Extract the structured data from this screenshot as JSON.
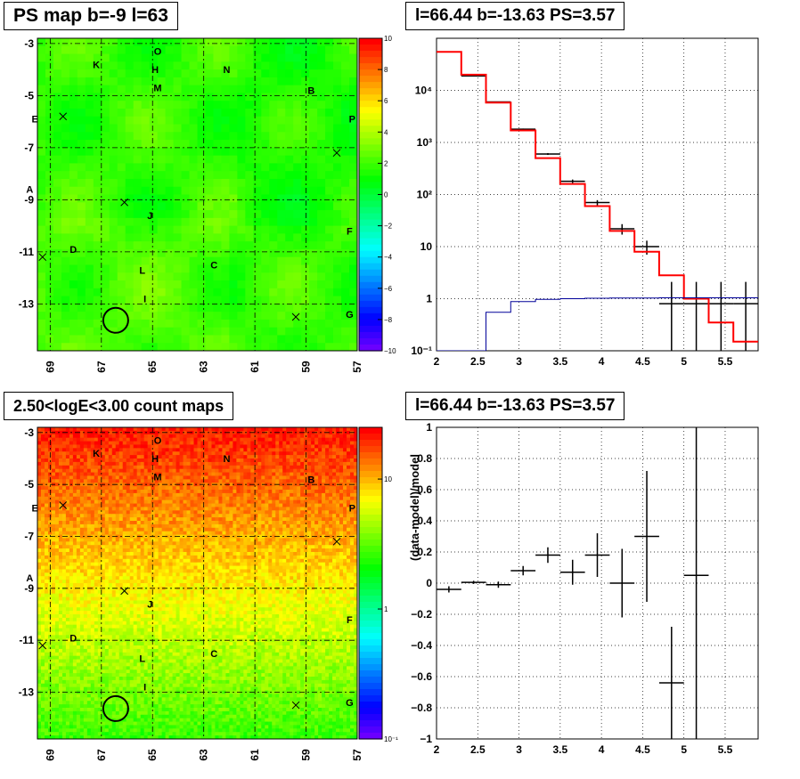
{
  "panels": {
    "ps_map": {
      "title": "PS map b=-9 l=63",
      "x_ticks": [
        "69",
        "67",
        "65",
        "63",
        "61",
        "59",
        "57"
      ],
      "y_ticks": [
        "-3",
        "-5",
        "-7",
        "-9",
        "-11",
        "-13"
      ],
      "colorbar_ticks": [
        "10",
        "8",
        "6",
        "4",
        "2",
        "0",
        "−2",
        "−4",
        "−6",
        "−8",
        "−10"
      ]
    },
    "spectrum": {
      "title": "l=66.44 b=-13.63 PS=3.57",
      "x_ticks": [
        "2",
        "2.5",
        "3",
        "3.5",
        "4",
        "4.5",
        "5",
        "5.5"
      ],
      "y_ticks": [
        "10⁻¹",
        "1",
        "10",
        "10²",
        "10³",
        "10⁴"
      ]
    },
    "count_map": {
      "title": "2.50<logE<3.00 count maps",
      "x_ticks": [
        "69",
        "67",
        "65",
        "63",
        "61",
        "59",
        "57"
      ],
      "y_ticks": [
        "-3",
        "-5",
        "-7",
        "-9",
        "-11",
        "-13"
      ],
      "colorbar_ticks": [
        "10",
        "1",
        "10⁻¹"
      ]
    },
    "residual": {
      "title": "l=66.44 b=-13.63 PS=3.57",
      "ylabel": "(data-model)/model",
      "x_ticks": [
        "2",
        "2.5",
        "3",
        "3.5",
        "4",
        "4.5",
        "5",
        "5.5"
      ],
      "y_ticks": [
        "1",
        "0.8",
        "0.6",
        "0.4",
        "0.2",
        "0",
        "−0.2",
        "−0.4",
        "−0.6",
        "−0.8",
        "−1"
      ]
    }
  },
  "source_labels": [
    {
      "name": "O",
      "l": 64.8,
      "b": -3.3
    },
    {
      "name": "K",
      "l": 67.2,
      "b": -3.8
    },
    {
      "name": "H",
      "l": 64.9,
      "b": -4.0
    },
    {
      "name": "N",
      "l": 62.1,
      "b": -4.0
    },
    {
      "name": "M",
      "l": 64.8,
      "b": -4.7
    },
    {
      "name": "B",
      "l": 58.8,
      "b": -4.8
    },
    {
      "name": "E",
      "l": 69.6,
      "b": -5.9
    },
    {
      "name": "P",
      "l": 57.2,
      "b": -5.9
    },
    {
      "name": "A",
      "l": 69.8,
      "b": -8.6
    },
    {
      "name": "J",
      "l": 65.1,
      "b": -9.6
    },
    {
      "name": "F",
      "l": 57.3,
      "b": -10.2
    },
    {
      "name": "D",
      "l": 68.1,
      "b": -10.9
    },
    {
      "name": "C",
      "l": 62.6,
      "b": -11.5
    },
    {
      "name": "L",
      "l": 65.4,
      "b": -11.7
    },
    {
      "name": "I",
      "l": 65.3,
      "b": -12.8
    },
    {
      "name": "G",
      "l": 57.3,
      "b": -13.4
    }
  ],
  "crosses": [
    {
      "l": 68.5,
      "b": -5.8
    },
    {
      "l": 57.8,
      "b": -7.2
    },
    {
      "l": 66.1,
      "b": -9.1
    },
    {
      "l": 69.3,
      "b": -11.2
    },
    {
      "l": 59.4,
      "b": -13.5
    }
  ],
  "circle": {
    "l": 66.44,
    "b": -13.63
  },
  "chart_data": [
    {
      "type": "heatmap",
      "title": "PS map b=-9 l=63",
      "xlim": [
        69.5,
        57
      ],
      "ylim": [
        -14.8,
        -2.8
      ],
      "zlim": [
        -10,
        10
      ],
      "x_ticks": [
        69,
        67,
        65,
        63,
        61,
        59,
        57
      ],
      "y_ticks": [
        -3,
        -5,
        -7,
        -9,
        -11,
        -13
      ]
    },
    {
      "type": "line",
      "title": "l=66.44 b=-13.63 PS=3.57",
      "log_y": true,
      "xlim": [
        2,
        5.9
      ],
      "ylim": [
        0.1,
        100000
      ],
      "x": [
        2.15,
        2.45,
        2.75,
        3.05,
        3.35,
        3.65,
        3.95,
        4.25,
        4.55,
        4.85,
        5.15,
        5.45,
        5.75
      ],
      "series": [
        {
          "color": "#000000",
          "values": [
            55000,
            19000,
            6000,
            1800,
            600,
            180,
            70,
            22,
            10,
            0.8,
            0.8,
            0.8,
            0.8
          ],
          "errors": [
            230,
            140,
            80,
            45,
            25,
            14,
            8,
            5,
            3,
            1.3,
            1.3,
            1.3,
            1.3
          ]
        },
        {
          "color": "#ff0000",
          "values": [
            55000,
            20000,
            5800,
            1700,
            500,
            160,
            60,
            20,
            8,
            2.8,
            1,
            0.35,
            0.15
          ]
        },
        {
          "color": "#000099",
          "values": [
            0.1,
            0.1,
            0.55,
            0.88,
            0.97,
            1.0,
            1.02,
            1.03,
            1.03,
            1.04,
            1.04,
            1.04,
            1.04
          ]
        }
      ]
    },
    {
      "type": "heatmap",
      "title": "2.50<logE<3.00 count maps",
      "xlim": [
        69.5,
        57
      ],
      "ylim": [
        -14.8,
        -2.8
      ],
      "zlim": [
        0.1,
        25
      ],
      "log_z": true
    },
    {
      "type": "scatter",
      "title": "l=66.44 b=-13.63 PS=3.57",
      "ylabel": "(data-model)/model",
      "xlim": [
        2,
        5.9
      ],
      "ylim": [
        -1,
        1
      ],
      "x": [
        2.15,
        2.45,
        2.75,
        3.05,
        3.35,
        3.65,
        3.95,
        4.25,
        4.55,
        4.85,
        5.15
      ],
      "values": [
        -0.04,
        0.005,
        -0.01,
        0.08,
        0.18,
        0.07,
        0.18,
        0.0,
        0.3,
        -0.64,
        0.05
      ],
      "errors": [
        0.02,
        0.01,
        0.02,
        0.03,
        0.05,
        0.08,
        0.14,
        0.22,
        0.42,
        0.36,
        1.1
      ]
    }
  ]
}
